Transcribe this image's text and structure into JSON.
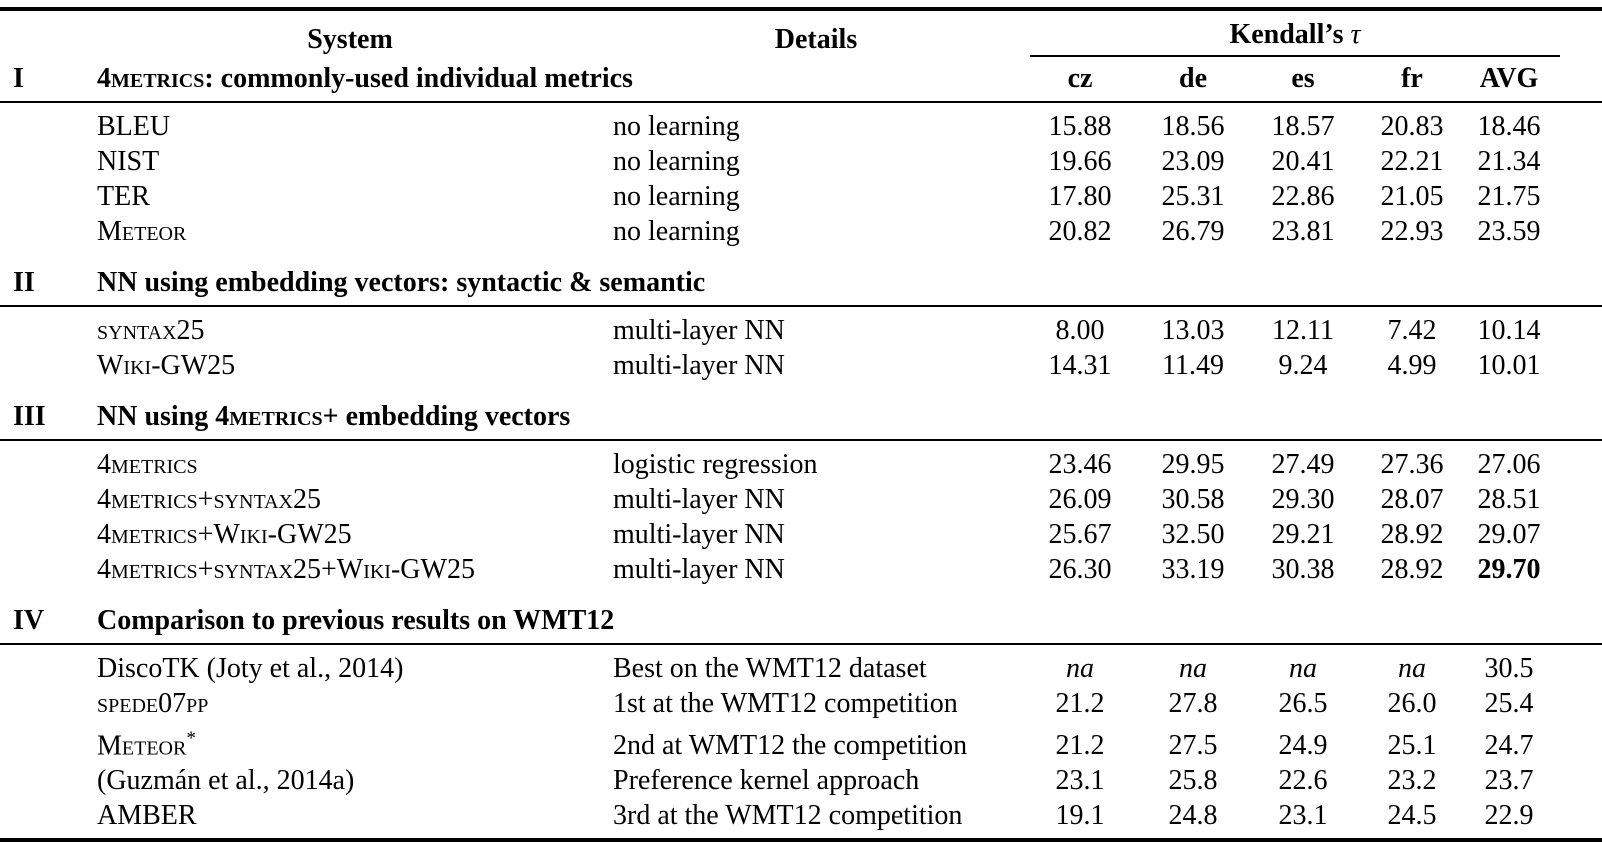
{
  "header": {
    "system": "System",
    "details": "Details",
    "kendalls": "Kendall’s ",
    "tau": "τ",
    "cols": [
      "cz",
      "de",
      "es",
      "fr",
      "AVG"
    ]
  },
  "sections": [
    {
      "numeral": "I",
      "title": [
        {
          "t": "4metrics",
          "sc": true
        },
        {
          "t": ": commonly-used individual metrics"
        }
      ],
      "rows": [
        {
          "system": [
            {
              "t": "BLEU"
            }
          ],
          "details": "no learning",
          "values": [
            "15.88",
            "18.56",
            "18.57",
            "20.83",
            "18.46"
          ]
        },
        {
          "system": [
            {
              "t": "NIST"
            }
          ],
          "details": "no learning",
          "values": [
            "19.66",
            "23.09",
            "20.41",
            "22.21",
            "21.34"
          ]
        },
        {
          "system": [
            {
              "t": "TER"
            }
          ],
          "details": "no learning",
          "values": [
            "17.80",
            "25.31",
            "22.86",
            "21.05",
            "21.75"
          ]
        },
        {
          "system": [
            {
              "t": "Meteor",
              "sc": true
            }
          ],
          "details": "no learning",
          "values": [
            "20.82",
            "26.79",
            "23.81",
            "22.93",
            "23.59"
          ]
        }
      ]
    },
    {
      "numeral": "II",
      "title": [
        {
          "t": "NN using embedding vectors: syntactic & semantic"
        }
      ],
      "rows": [
        {
          "system": [
            {
              "t": "syntax25",
              "sc": true
            }
          ],
          "details": "multi-layer NN",
          "values": [
            "8.00",
            "13.03",
            "12.11",
            "7.42",
            "10.14"
          ]
        },
        {
          "system": [
            {
              "t": "Wiki-GW25",
              "sc": true
            }
          ],
          "details": "multi-layer NN",
          "values": [
            "14.31",
            "11.49",
            "9.24",
            "4.99",
            "10.01"
          ]
        }
      ]
    },
    {
      "numeral": "III",
      "title": [
        {
          "t": "NN using "
        },
        {
          "t": "4metrics",
          "sc": true
        },
        {
          "t": "+ embedding vectors"
        }
      ],
      "rows": [
        {
          "system": [
            {
              "t": "4metrics",
              "sc": true
            }
          ],
          "details": "logistic regression",
          "values": [
            "23.46",
            "29.95",
            "27.49",
            "27.36",
            "27.06"
          ]
        },
        {
          "system": [
            {
              "t": "4metrics+syntax25",
              "sc": true
            }
          ],
          "details": "multi-layer NN",
          "values": [
            "26.09",
            "30.58",
            "29.30",
            "28.07",
            "28.51"
          ]
        },
        {
          "system": [
            {
              "t": "4metrics+Wiki-GW25",
              "sc": true
            }
          ],
          "details": "multi-layer NN",
          "values": [
            "25.67",
            "32.50",
            "29.21",
            "28.92",
            "29.07"
          ]
        },
        {
          "system": [
            {
              "t": "4metrics+syntax25+Wiki-GW25",
              "sc": true
            }
          ],
          "details": "multi-layer NN",
          "values": [
            "26.30",
            "33.19",
            "30.38",
            "28.92",
            {
              "t": "29.70",
              "b": true
            }
          ]
        }
      ]
    },
    {
      "numeral": "IV",
      "title": [
        {
          "t": "Comparison to previous results on WMT12"
        }
      ],
      "rows": [
        {
          "system": [
            {
              "t": "DiscoTK (Joty et al., 2014)"
            }
          ],
          "details": "Best on the WMT12 dataset",
          "values": [
            {
              "t": "na",
              "i": true
            },
            {
              "t": "na",
              "i": true
            },
            {
              "t": "na",
              "i": true
            },
            {
              "t": "na",
              "i": true
            },
            "30.5"
          ]
        },
        {
          "system": [
            {
              "t": "spede07pp",
              "sc": true
            }
          ],
          "details": "1st at the WMT12 competition",
          "values": [
            "21.2",
            "27.8",
            "26.5",
            "26.0",
            "25.4"
          ]
        },
        {
          "system": [
            {
              "t": "Meteor",
              "sc": true
            },
            {
              "t": "*",
              "sup": true
            }
          ],
          "details": "2nd at WMT12 the competition",
          "values": [
            "21.2",
            "27.5",
            "24.9",
            "25.1",
            "24.7"
          ]
        },
        {
          "system": [
            {
              "t": "(Guzmán et al., 2014a)"
            }
          ],
          "details": "Preference kernel approach",
          "values": [
            "23.1",
            "25.8",
            "22.6",
            "23.2",
            "23.7"
          ]
        },
        {
          "system": [
            {
              "t": "AMBER"
            }
          ],
          "details": "3rd at the WMT12 competition",
          "values": [
            "19.1",
            "24.8",
            "23.1",
            "24.5",
            "22.9"
          ]
        }
      ]
    }
  ]
}
